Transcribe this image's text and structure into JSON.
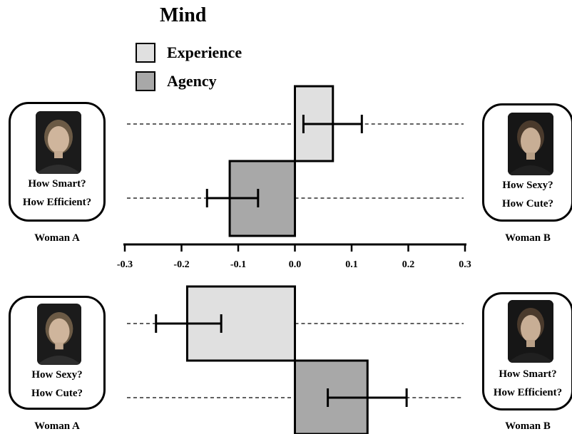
{
  "title": "Mind",
  "legend": [
    {
      "label": "Experience",
      "color": "#e0e0e0"
    },
    {
      "label": "Agency",
      "color": "#a8a8a8"
    }
  ],
  "top_panel": {
    "left_card": {
      "q1": "How Smart?",
      "q2": "How Efficient?",
      "label": "Woman A",
      "photo": "woman-a-portrait"
    },
    "right_card": {
      "q1": "How Sexy?",
      "q2": "How Cute?",
      "label": "Woman B",
      "photo": "woman-b-portrait"
    }
  },
  "bottom_panel": {
    "left_card": {
      "q1": "How Sexy?",
      "q2": "How Cute?",
      "label": "Woman A",
      "photo": "woman-a-portrait"
    },
    "right_card": {
      "q1": "How Smart?",
      "q2": "How Efficient?",
      "label": "Woman B",
      "photo": "woman-b-portrait"
    }
  },
  "chart_data": [
    {
      "type": "bar",
      "orientation": "horizontal",
      "panel": "top",
      "categories": [
        "Experience",
        "Agency"
      ],
      "values": [
        0.067,
        -0.115
      ],
      "error_low": [
        0.015,
        -0.155
      ],
      "error_high": [
        0.118,
        -0.065
      ],
      "xlim": [
        -0.3,
        0.3
      ],
      "xticks": [
        "-0.3",
        "-0.2",
        "-0.1",
        "0.0",
        "0.1",
        "0.2",
        "0.3"
      ],
      "tick_values": [
        -0.3,
        -0.2,
        -0.1,
        0.0,
        0.1,
        0.2,
        0.3
      ],
      "colors": [
        "#e0e0e0",
        "#a8a8a8"
      ]
    },
    {
      "type": "bar",
      "orientation": "horizontal",
      "panel": "bottom",
      "categories": [
        "Experience",
        "Agency"
      ],
      "values": [
        -0.19,
        0.128
      ],
      "error_low": [
        -0.245,
        0.058
      ],
      "error_high": [
        -0.13,
        0.197
      ],
      "xlim": [
        -0.3,
        0.3
      ],
      "colors": [
        "#e0e0e0",
        "#a8a8a8"
      ]
    }
  ]
}
